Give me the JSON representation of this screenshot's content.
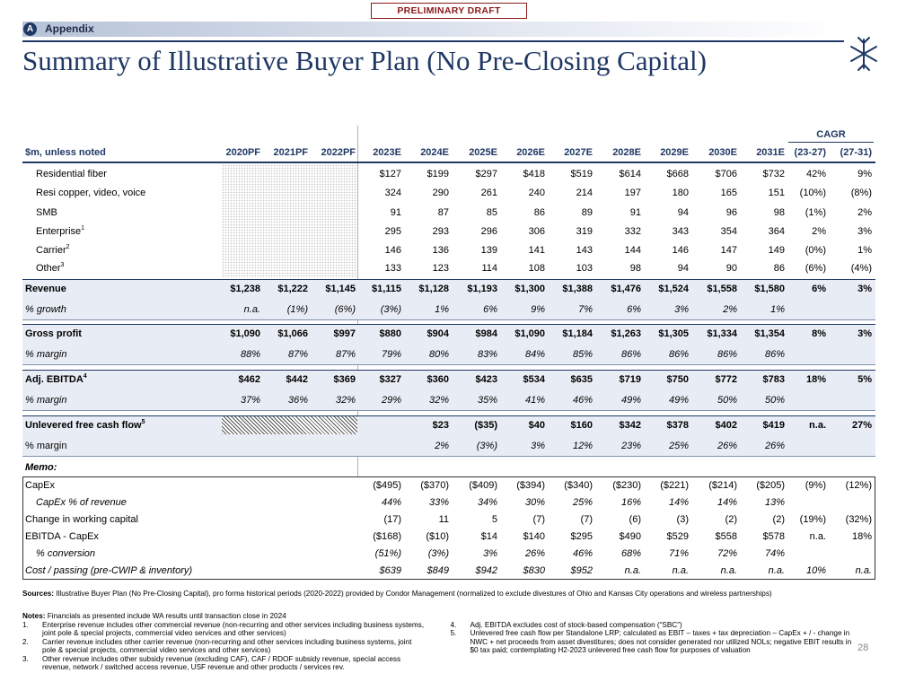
{
  "header": {
    "draft_label": "PRELIMINARY DRAFT",
    "section_badge": "A",
    "section": "Appendix",
    "title": "Summary of Illustrative Buyer Plan (No Pre-Closing Capital)"
  },
  "table": {
    "group_header": "CAGR",
    "columns": [
      "$m, unless noted",
      "2020PF",
      "2021PF",
      "2022PF",
      "2023E",
      "2024E",
      "2025E",
      "2026E",
      "2027E",
      "2028E",
      "2029E",
      "2030E",
      "2031E",
      "(23-27)",
      "(27-31)"
    ],
    "rows": [
      {
        "label": "Residential fiber",
        "cells": [
          null,
          null,
          null,
          "$127",
          "$199",
          "$297",
          "$418",
          "$519",
          "$614",
          "$668",
          "$706",
          "$732",
          "42%",
          "9%"
        ]
      },
      {
        "label": "Resi copper, video, voice",
        "cells": [
          null,
          null,
          null,
          "324",
          "290",
          "261",
          "240",
          "214",
          "197",
          "180",
          "165",
          "151",
          "(10%)",
          "(8%)"
        ]
      },
      {
        "label": "SMB",
        "cells": [
          null,
          null,
          null,
          "91",
          "87",
          "85",
          "86",
          "89",
          "91",
          "94",
          "96",
          "98",
          "(1%)",
          "2%"
        ]
      },
      {
        "label": "Enterprise",
        "note": "1",
        "cells": [
          null,
          null,
          null,
          "295",
          "293",
          "296",
          "306",
          "319",
          "332",
          "343",
          "354",
          "364",
          "2%",
          "3%"
        ]
      },
      {
        "label": "Carrier",
        "note": "2",
        "cells": [
          null,
          null,
          null,
          "146",
          "136",
          "139",
          "141",
          "143",
          "144",
          "146",
          "147",
          "149",
          "(0%)",
          "1%"
        ]
      },
      {
        "label": "Other",
        "note": "3",
        "cells": [
          null,
          null,
          null,
          "133",
          "123",
          "114",
          "108",
          "103",
          "98",
          "94",
          "90",
          "86",
          "(6%)",
          "(4%)"
        ]
      },
      {
        "label": "Revenue",
        "cells": [
          "$1,238",
          "$1,222",
          "$1,145",
          "$1,115",
          "$1,128",
          "$1,193",
          "$1,300",
          "$1,388",
          "$1,476",
          "$1,524",
          "$1,558",
          "$1,580",
          "6%",
          "3%"
        ]
      },
      {
        "label": "% growth",
        "cells": [
          "n.a.",
          "(1%)",
          "(6%)",
          "(3%)",
          "1%",
          "6%",
          "9%",
          "7%",
          "6%",
          "3%",
          "2%",
          "1%",
          null,
          null
        ]
      },
      {
        "label": "Gross profit",
        "cells": [
          "$1,090",
          "$1,066",
          "$997",
          "$880",
          "$904",
          "$984",
          "$1,090",
          "$1,184",
          "$1,263",
          "$1,305",
          "$1,334",
          "$1,354",
          "8%",
          "3%"
        ]
      },
      {
        "label": "% margin",
        "cells": [
          "88%",
          "87%",
          "87%",
          "79%",
          "80%",
          "83%",
          "84%",
          "85%",
          "86%",
          "86%",
          "86%",
          "86%",
          null,
          null
        ]
      },
      {
        "label": "Adj. EBITDA",
        "note": "4",
        "cells": [
          "$462",
          "$442",
          "$369",
          "$327",
          "$360",
          "$423",
          "$534",
          "$635",
          "$719",
          "$750",
          "$772",
          "$783",
          "18%",
          "5%"
        ]
      },
      {
        "label": "% margin",
        "cells": [
          "37%",
          "36%",
          "32%",
          "29%",
          "32%",
          "35%",
          "41%",
          "46%",
          "49%",
          "49%",
          "50%",
          "50%",
          null,
          null
        ]
      },
      {
        "label": "Unlevered free cash flow",
        "note": "5",
        "cells": [
          null,
          null,
          null,
          null,
          "$23",
          "($35)",
          "$40",
          "$160",
          "$342",
          "$378",
          "$402",
          "$419",
          "n.a.",
          "27%"
        ]
      },
      {
        "label": "% margin",
        "cells": [
          null,
          null,
          null,
          null,
          "2%",
          "(3%)",
          "3%",
          "12%",
          "23%",
          "25%",
          "26%",
          "26%",
          null,
          null
        ]
      }
    ],
    "memo_label": "Memo:",
    "memo_rows": [
      {
        "label": "CapEx",
        "cells": [
          null,
          null,
          null,
          "($495)",
          "($370)",
          "($409)",
          "($394)",
          "($340)",
          "($230)",
          "($221)",
          "($214)",
          "($205)",
          "(9%)",
          "(12%)"
        ]
      },
      {
        "label": "CapEx % of revenue",
        "cells": [
          null,
          null,
          null,
          "44%",
          "33%",
          "34%",
          "30%",
          "25%",
          "16%",
          "14%",
          "14%",
          "13%",
          null,
          null
        ]
      },
      {
        "label": "Change in working capital",
        "cells": [
          null,
          null,
          null,
          "(17)",
          "11",
          "5",
          "(7)",
          "(7)",
          "(6)",
          "(3)",
          "(2)",
          "(2)",
          "(19%)",
          "(32%)"
        ]
      },
      {
        "label": "EBITDA - CapEx",
        "cells": [
          null,
          null,
          null,
          "($168)",
          "($10)",
          "$14",
          "$140",
          "$295",
          "$490",
          "$529",
          "$558",
          "$578",
          "n.a.",
          "18%"
        ]
      },
      {
        "label": "% conversion",
        "cells": [
          null,
          null,
          null,
          "(51%)",
          "(3%)",
          "3%",
          "26%",
          "46%",
          "68%",
          "71%",
          "72%",
          "74%",
          null,
          null
        ]
      },
      {
        "label": "Cost / passing (pre-CWIP & inventory)",
        "cells": [
          null,
          null,
          null,
          "$639",
          "$849",
          "$942",
          "$830",
          "$952",
          "n.a.",
          "n.a.",
          "n.a.",
          "n.a.",
          "10%",
          "n.a."
        ]
      }
    ]
  },
  "footnotes": {
    "sources_label": "Sources:",
    "sources": "Illustrative Buyer Plan (No Pre-Closing Capital), pro forma historical periods (2020-2022) provided by Condor Management (normalized to exclude divestures of Ohio and Kansas City operations and wireless partnerships)",
    "notes_label": "Notes:",
    "notes": "Financials as presented include WA results until transaction close in 2024",
    "items": [
      {
        "num": "1.",
        "text": "Enterprise revenue includes other commercial revenue (non-recurring and other services including business systems, joint pole & special projects, commercial video services and other services)"
      },
      {
        "num": "2.",
        "text": "Carrier revenue includes other carrier revenue (non-recurring and other services including business systems, joint pole & special projects, commercial video services and other services)"
      },
      {
        "num": "3.",
        "text": "Other revenue includes other subsidy revenue (excluding CAF), CAF / RDOF subsidy revenue, special access revenue, network / switched access revenue, USF revenue and other products / services rev."
      },
      {
        "num": "4.",
        "text": "Adj. EBITDA excludes cost of stock-based compensation (“SBC”)"
      },
      {
        "num": "5.",
        "text": "Unlevered free cash flow per Standalone LRP; calculated as EBIT – taxes + tax depreciation – CapEx + / - change in NWC + net proceeds from asset divestitures; does not consider generated nor utilized NOLs; negative EBIT results in $0 tax paid; contemplating H2-2023 unlevered free cash flow for purposes of valuation"
      }
    ]
  },
  "page_number": "28"
}
